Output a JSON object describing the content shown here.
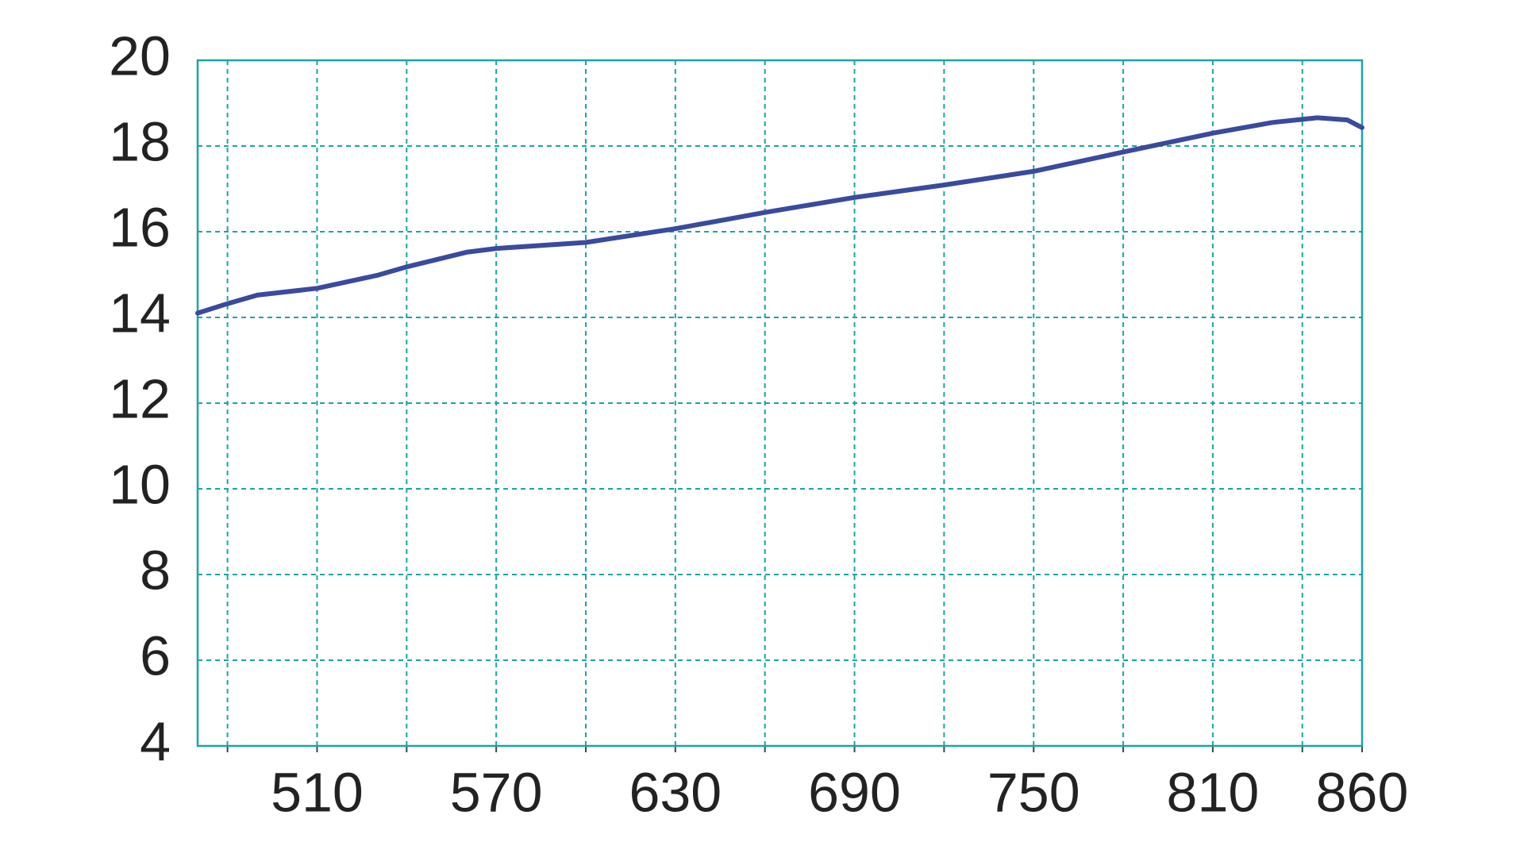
{
  "chart_data": {
    "type": "line",
    "x": [
      470,
      480,
      490,
      510,
      530,
      540,
      560,
      570,
      600,
      630,
      660,
      690,
      720,
      750,
      780,
      810,
      830,
      845,
      855,
      860
    ],
    "series": [
      {
        "color": "#3a4a9e",
        "values": [
          14.1,
          14.32,
          14.52,
          14.68,
          14.98,
          15.18,
          15.52,
          15.61,
          15.75,
          16.07,
          16.45,
          16.8,
          17.09,
          17.41,
          17.86,
          18.3,
          18.55,
          18.66,
          18.61,
          18.43
        ]
      }
    ],
    "xlim": [
      470,
      860
    ],
    "xticks": [
      510,
      570,
      630,
      690,
      750,
      810,
      860
    ],
    "xminorticks": [
      480,
      540,
      600,
      660,
      720,
      780,
      840
    ],
    "ylim": [
      4,
      20
    ],
    "yticks": [
      4,
      6,
      8,
      10,
      12,
      14,
      16,
      18,
      20
    ],
    "grid": true,
    "grid_color": "#1aa5a5"
  }
}
